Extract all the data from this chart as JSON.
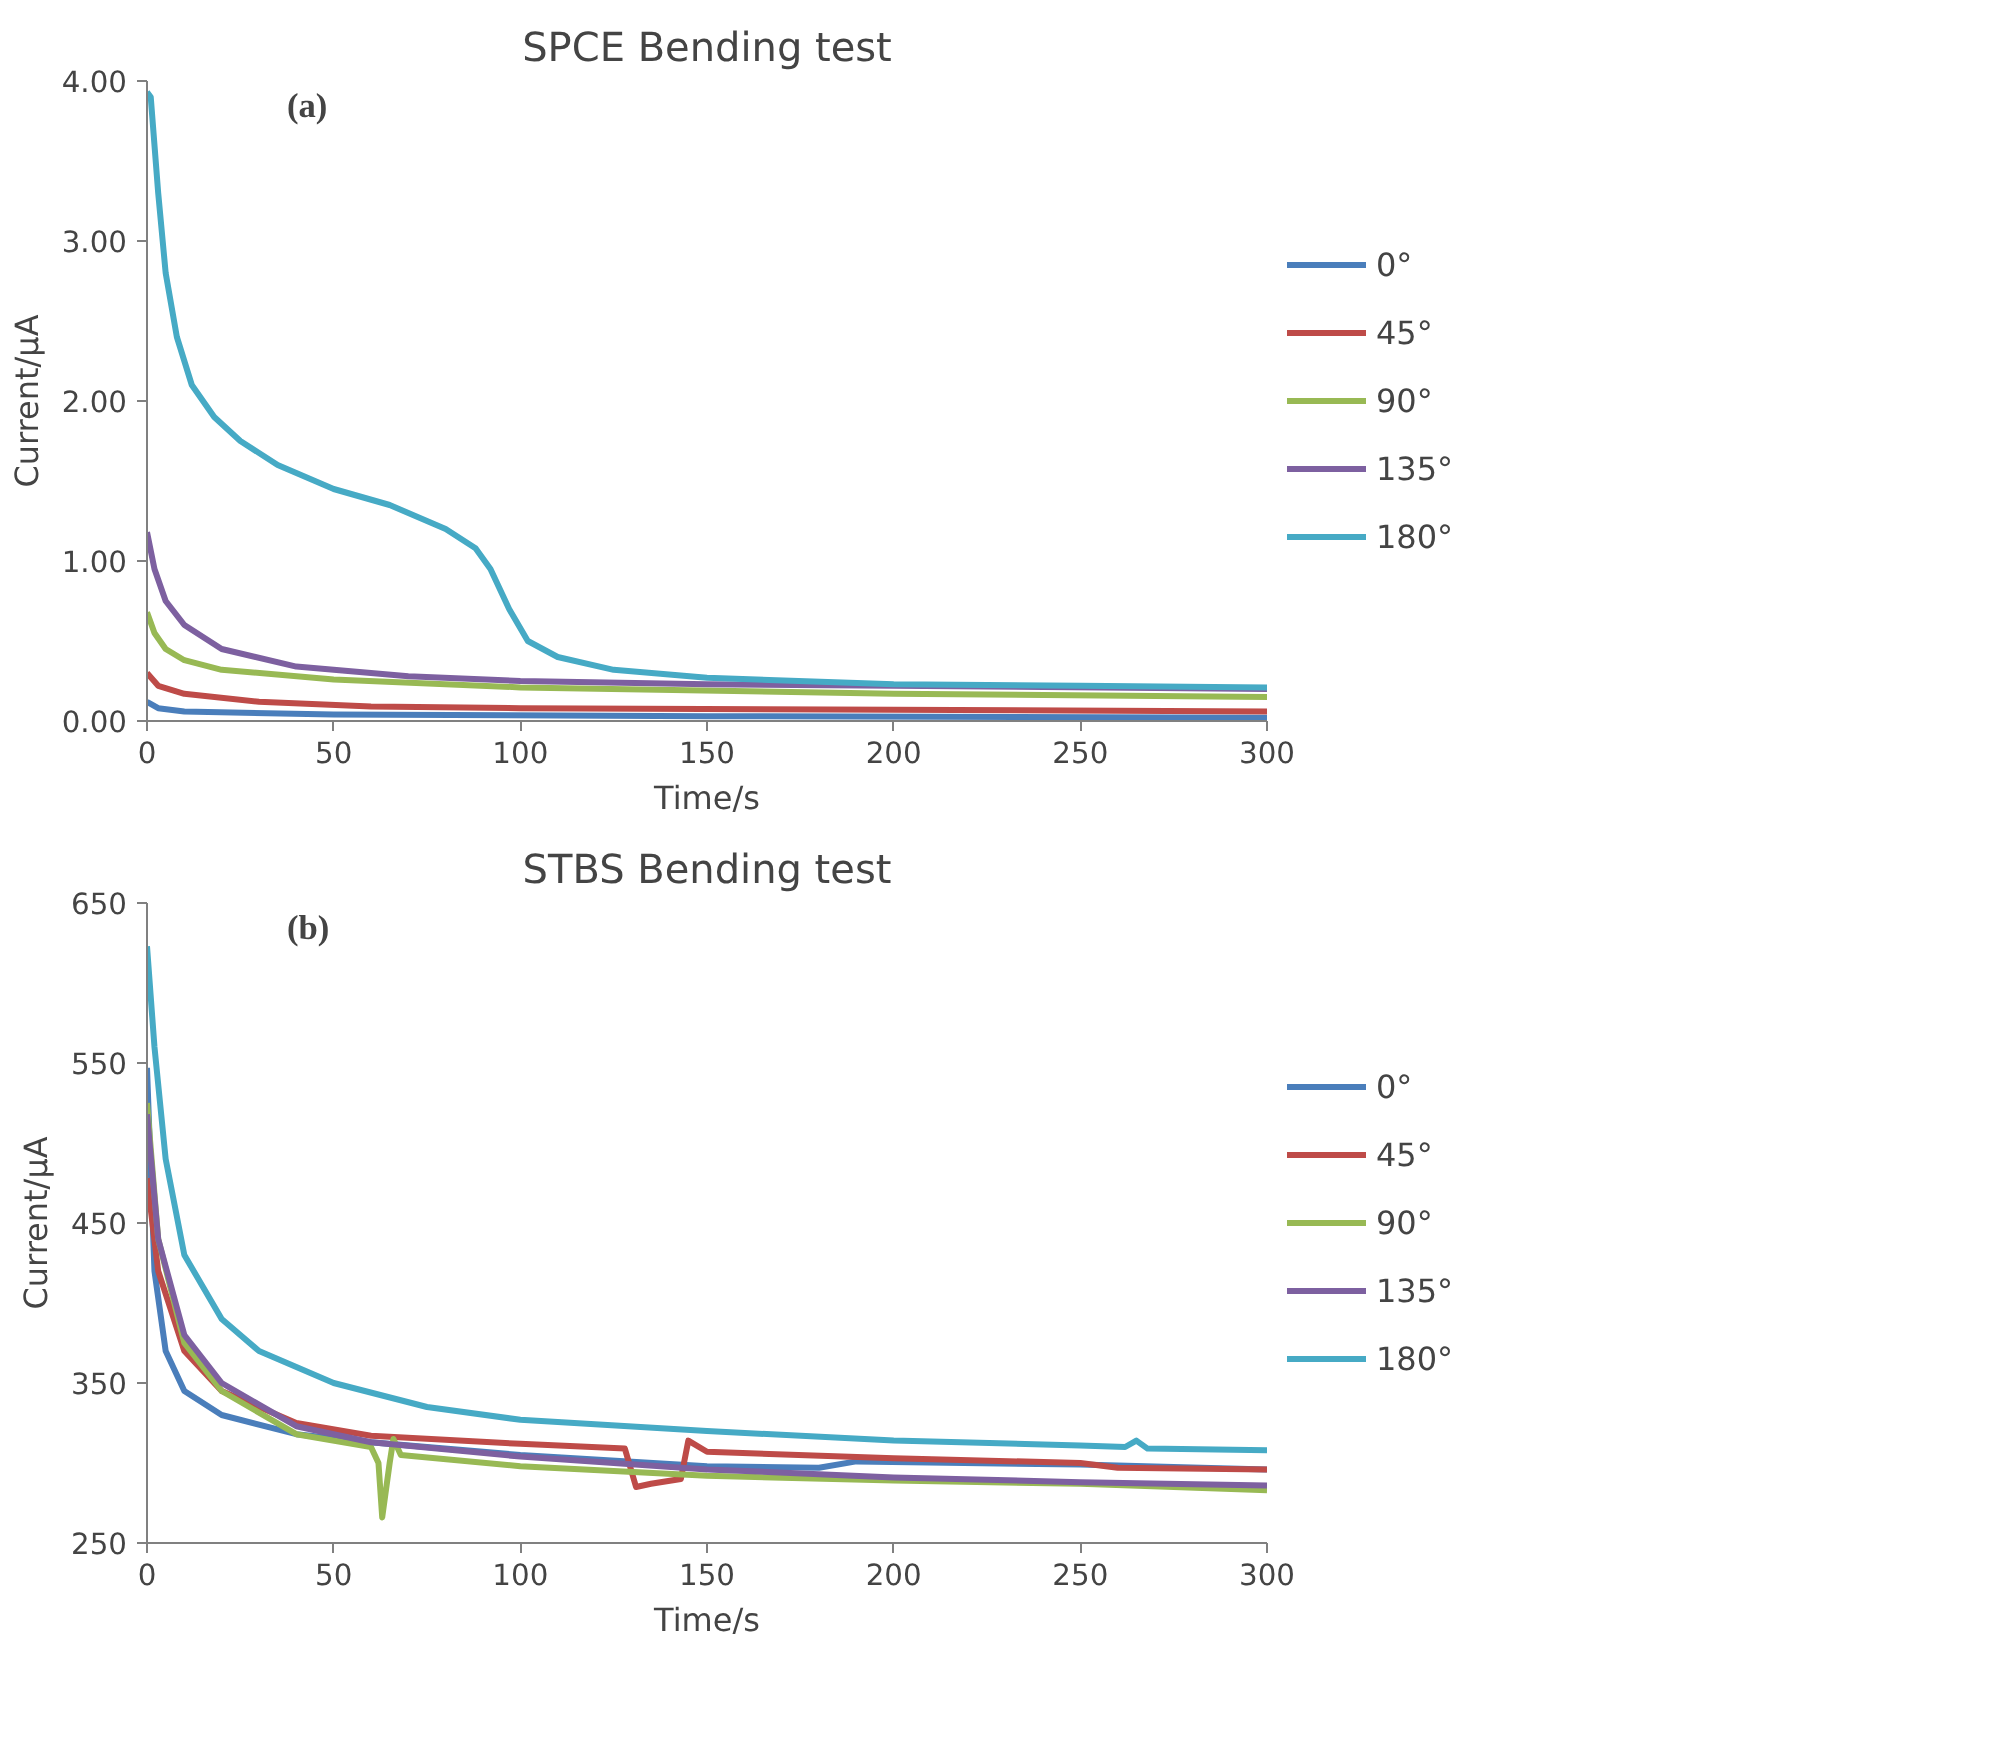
{
  "chart_data": [
    {
      "type": "line",
      "title": "SPCE Bending test",
      "xlabel": "Time/s",
      "ylabel": "Current/μA",
      "annotations": [
        "(a)"
      ],
      "xlim": [
        0,
        300
      ],
      "xticks": [
        0,
        50,
        100,
        150,
        200,
        250,
        300
      ],
      "ylim": [
        0,
        4
      ],
      "yticks": [
        {
          "value": 0,
          "label": "0.00"
        },
        {
          "value": 1,
          "label": "1.00"
        },
        {
          "value": 2,
          "label": "2.00"
        },
        {
          "value": 3,
          "label": "3.00"
        },
        {
          "value": 4,
          "label": "4.00"
        }
      ],
      "grid": false,
      "legend": "right",
      "series": [
        {
          "name": "0°",
          "color": "#4a7ebb",
          "x": [
            0,
            3,
            10,
            50,
            150,
            300
          ],
          "values": [
            0.12,
            0.08,
            0.06,
            0.04,
            0.03,
            0.02
          ]
        },
        {
          "name": "45°",
          "color": "#be4b48",
          "x": [
            0,
            3,
            10,
            30,
            60,
            100,
            200,
            300
          ],
          "values": [
            0.3,
            0.22,
            0.17,
            0.12,
            0.09,
            0.08,
            0.07,
            0.06
          ]
        },
        {
          "name": "90°",
          "color": "#98b954",
          "x": [
            0,
            2,
            5,
            10,
            20,
            50,
            100,
            200,
            300
          ],
          "values": [
            0.68,
            0.55,
            0.45,
            0.38,
            0.32,
            0.26,
            0.21,
            0.17,
            0.15
          ]
        },
        {
          "name": "135°",
          "color": "#7d60a0",
          "x": [
            0,
            2,
            5,
            10,
            20,
            40,
            70,
            100,
            150,
            200,
            300
          ],
          "values": [
            1.18,
            0.95,
            0.75,
            0.6,
            0.45,
            0.34,
            0.28,
            0.25,
            0.23,
            0.22,
            0.2
          ]
        },
        {
          "name": "180°",
          "color": "#46aac5",
          "x": [
            0,
            1,
            3,
            5,
            8,
            12,
            18,
            25,
            35,
            50,
            65,
            80,
            88,
            92,
            97,
            102,
            110,
            125,
            150,
            200,
            250,
            300
          ],
          "values": [
            3.93,
            3.9,
            3.3,
            2.8,
            2.4,
            2.1,
            1.9,
            1.75,
            1.6,
            1.45,
            1.35,
            1.2,
            1.08,
            0.95,
            0.7,
            0.5,
            0.4,
            0.32,
            0.27,
            0.23,
            0.22,
            0.21
          ]
        }
      ]
    },
    {
      "type": "line",
      "title": "STBS Bending test",
      "xlabel": "Time/s",
      "ylabel": "Current/μA",
      "annotations": [
        "(b)"
      ],
      "xlim": [
        0,
        300
      ],
      "xticks": [
        0,
        50,
        100,
        150,
        200,
        250,
        300
      ],
      "ylim": [
        250,
        650
      ],
      "yticks": [
        250,
        350,
        450,
        550,
        650
      ],
      "grid": false,
      "legend": "right",
      "series": [
        {
          "name": "0°",
          "color": "#4a7ebb",
          "x": [
            0,
            2,
            5,
            10,
            20,
            40,
            60,
            100,
            150,
            180,
            190,
            250,
            300
          ],
          "values": [
            547,
            420,
            370,
            345,
            330,
            318,
            313,
            305,
            298,
            297,
            301,
            299,
            296
          ]
        },
        {
          "name": "45°",
          "color": "#be4b48",
          "x": [
            0,
            3,
            10,
            20,
            40,
            60,
            100,
            128,
            131,
            135,
            143,
            145,
            150,
            200,
            250,
            260,
            300
          ],
          "values": [
            478,
            420,
            370,
            345,
            325,
            317,
            312,
            309,
            285,
            287,
            290,
            314,
            307,
            303,
            300,
            297,
            296
          ]
        },
        {
          "name": "90°",
          "color": "#98b954",
          "x": [
            0,
            3,
            10,
            20,
            40,
            60,
            62,
            63,
            65,
            66,
            68,
            100,
            150,
            200,
            250,
            300
          ],
          "values": [
            525,
            440,
            375,
            345,
            318,
            310,
            300,
            266,
            300,
            315,
            305,
            298,
            292,
            289,
            287,
            283
          ]
        },
        {
          "name": "135°",
          "color": "#7d60a0",
          "x": [
            0,
            3,
            10,
            20,
            40,
            60,
            100,
            150,
            200,
            250,
            300
          ],
          "values": [
            518,
            440,
            380,
            350,
            323,
            313,
            304,
            296,
            291,
            288,
            286
          ]
        },
        {
          "name": "180°",
          "color": "#46aac5",
          "x": [
            0,
            2,
            5,
            10,
            20,
            30,
            50,
            75,
            100,
            150,
            200,
            250,
            262,
            265,
            268,
            300
          ],
          "values": [
            623,
            560,
            490,
            430,
            390,
            370,
            350,
            335,
            327,
            320,
            314,
            311,
            310,
            314,
            309,
            308
          ]
        }
      ]
    }
  ]
}
